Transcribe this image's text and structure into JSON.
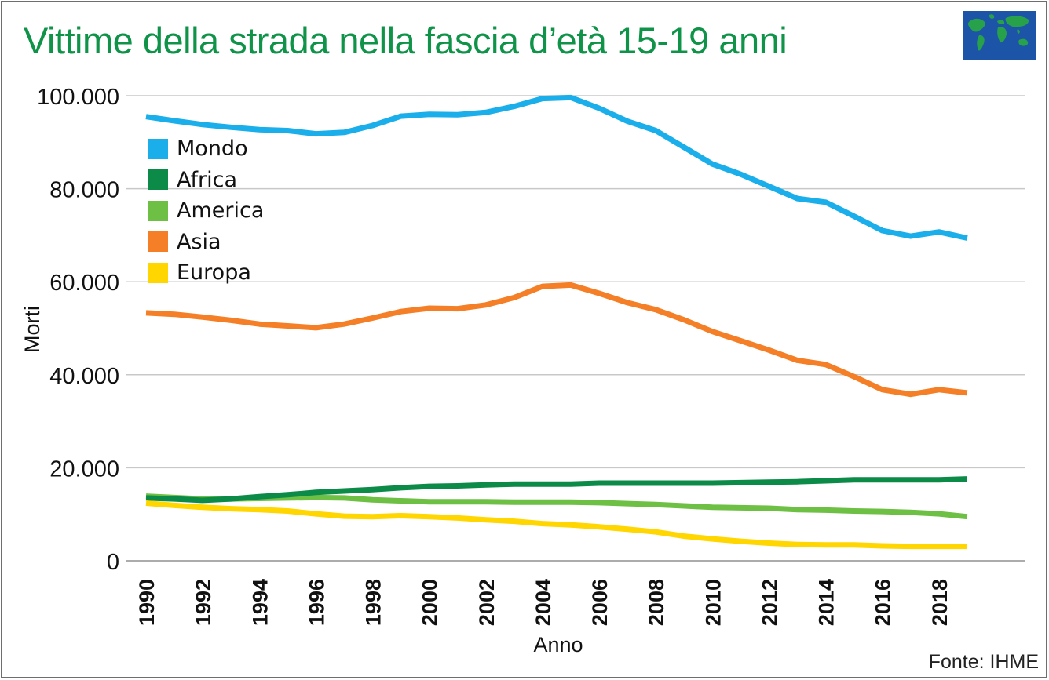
{
  "title": "Vittime della strada nella fascia d’età 15-19 anni",
  "source": "Fonte: IHME",
  "icon": "world-map-icon",
  "colors": {
    "title": "#0f9348",
    "grid": "#c8c8c8"
  },
  "chart_data": {
    "type": "line",
    "title": "Vittime della strada nella fascia d’età 15-19 anni",
    "xlabel": "Anno",
    "ylabel": "Morti",
    "x": [
      1990,
      1991,
      1992,
      1993,
      1994,
      1995,
      1996,
      1997,
      1998,
      1999,
      2000,
      2001,
      2002,
      2003,
      2004,
      2005,
      2006,
      2007,
      2008,
      2009,
      2010,
      2011,
      2012,
      2013,
      2014,
      2015,
      2016,
      2017,
      2018,
      2019
    ],
    "xlim": [
      1990,
      2020
    ],
    "ylim": [
      0,
      100000
    ],
    "yticks": [
      0,
      20000,
      40000,
      60000,
      80000,
      100000
    ],
    "ytick_labels": [
      "0",
      "20.000",
      "40.000",
      "60.000",
      "80.000",
      "100.000"
    ],
    "xticks": [
      1990,
      1992,
      1994,
      1996,
      1998,
      2000,
      2002,
      2004,
      2006,
      2008,
      2010,
      2012,
      2014,
      2016,
      2018
    ],
    "xtick_labels": [
      "1990",
      "1992",
      "1994",
      "1996",
      "1998",
      "2000",
      "2002",
      "2004",
      "2006",
      "2008",
      "2010",
      "2012",
      "2014",
      "2016",
      "2018"
    ],
    "grid": true,
    "legend_position": "top-left",
    "series": [
      {
        "name": "Mondo",
        "color": "#1aaeea",
        "values": [
          95500,
          94600,
          93800,
          93200,
          92700,
          92500,
          91800,
          92100,
          93600,
          95600,
          96000,
          95900,
          96400,
          97700,
          99400,
          99600,
          97300,
          94500,
          92500,
          88900,
          85300,
          83100,
          80500,
          77900,
          77100,
          74100,
          71000,
          69800,
          70700,
          69400
        ]
      },
      {
        "name": "Africa",
        "color": "#0c8a47",
        "values": [
          13500,
          13300,
          13000,
          13300,
          13800,
          14200,
          14700,
          15000,
          15300,
          15700,
          16000,
          16100,
          16300,
          16500,
          16500,
          16500,
          16700,
          16700,
          16700,
          16700,
          16700,
          16800,
          16900,
          17000,
          17200,
          17400,
          17400,
          17400,
          17400,
          17600
        ]
      },
      {
        "name": "America",
        "color": "#6dc043",
        "values": [
          13900,
          13600,
          13300,
          13300,
          13400,
          13500,
          13600,
          13500,
          13100,
          12900,
          12700,
          12700,
          12700,
          12600,
          12600,
          12600,
          12500,
          12300,
          12100,
          11800,
          11500,
          11400,
          11300,
          11000,
          10900,
          10700,
          10600,
          10400,
          10100,
          9500
        ]
      },
      {
        "name": "Asia",
        "color": "#f47f27",
        "values": [
          53300,
          53000,
          52400,
          51700,
          50900,
          50500,
          50100,
          50900,
          52200,
          53600,
          54300,
          54200,
          55000,
          56600,
          59000,
          59300,
          57500,
          55500,
          54000,
          51800,
          49300,
          47300,
          45300,
          43100,
          42200,
          39600,
          36800,
          35800,
          36800,
          36100
        ]
      },
      {
        "name": "Europa",
        "color": "#ffd600",
        "values": [
          12400,
          11900,
          11500,
          11200,
          11000,
          10700,
          10100,
          9600,
          9500,
          9700,
          9500,
          9200,
          8800,
          8500,
          8000,
          7700,
          7300,
          6800,
          6200,
          5300,
          4700,
          4200,
          3800,
          3500,
          3400,
          3400,
          3200,
          3100,
          3100,
          3100
        ]
      }
    ]
  }
}
